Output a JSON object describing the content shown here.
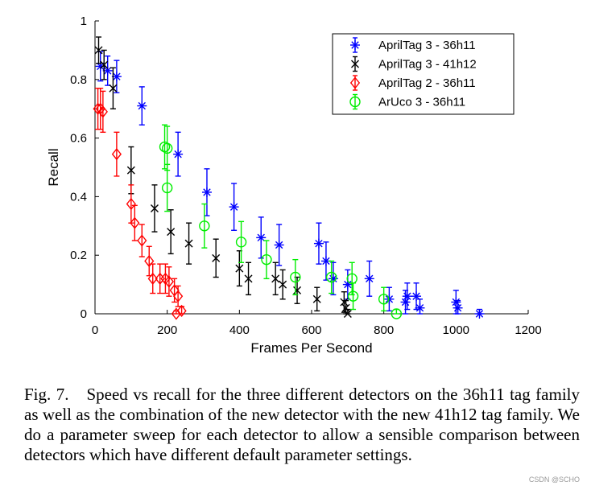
{
  "chart_data": {
    "type": "scatter",
    "xlabel": "Frames Per Second",
    "ylabel": "Recall",
    "xlim": [
      0,
      1200
    ],
    "ylim": [
      0,
      1
    ],
    "xticks": [
      0,
      200,
      400,
      600,
      800,
      1000,
      1200
    ],
    "yticks": [
      0,
      0.2,
      0.4,
      0.6,
      0.8,
      1
    ],
    "ytick_labels": [
      "0",
      "0.2",
      "0.4",
      "0.6",
      "0.8",
      "1"
    ],
    "grid": false,
    "legend_position": "top-right",
    "series": [
      {
        "name": "AprilTag 3 - 36h11",
        "color": "#0000ff",
        "marker": "asterisk",
        "points": [
          {
            "x": 15,
            "y": 0.845,
            "err": 0.05
          },
          {
            "x": 35,
            "y": 0.83,
            "err": 0.05
          },
          {
            "x": 60,
            "y": 0.81,
            "err": 0.055
          },
          {
            "x": 130,
            "y": 0.71,
            "err": 0.065
          },
          {
            "x": 230,
            "y": 0.545,
            "err": 0.075
          },
          {
            "x": 310,
            "y": 0.415,
            "err": 0.08
          },
          {
            "x": 385,
            "y": 0.365,
            "err": 0.08
          },
          {
            "x": 460,
            "y": 0.26,
            "err": 0.07
          },
          {
            "x": 510,
            "y": 0.235,
            "err": 0.07
          },
          {
            "x": 620,
            "y": 0.24,
            "err": 0.07
          },
          {
            "x": 640,
            "y": 0.18,
            "err": 0.065
          },
          {
            "x": 660,
            "y": 0.12,
            "err": 0.055
          },
          {
            "x": 700,
            "y": 0.1,
            "err": 0.05
          },
          {
            "x": 760,
            "y": 0.12,
            "err": 0.06
          },
          {
            "x": 815,
            "y": 0.05,
            "err": 0.04
          },
          {
            "x": 860,
            "y": 0.04,
            "err": 0.04
          },
          {
            "x": 865,
            "y": 0.06,
            "err": 0.045
          },
          {
            "x": 890,
            "y": 0.06,
            "err": 0.045
          },
          {
            "x": 900,
            "y": 0.02,
            "err": 0.03
          },
          {
            "x": 1000,
            "y": 0.04,
            "err": 0.04
          },
          {
            "x": 1005,
            "y": 0.02,
            "err": 0.025
          },
          {
            "x": 1065,
            "y": 0.0,
            "err": 0.015
          }
        ]
      },
      {
        "name": "AprilTag 3 - 41h12",
        "color": "#000000",
        "marker": "x",
        "points": [
          {
            "x": 10,
            "y": 0.9,
            "err": 0.045
          },
          {
            "x": 25,
            "y": 0.85,
            "err": 0.05
          },
          {
            "x": 50,
            "y": 0.77,
            "err": 0.07
          },
          {
            "x": 100,
            "y": 0.49,
            "err": 0.08
          },
          {
            "x": 165,
            "y": 0.36,
            "err": 0.08
          },
          {
            "x": 210,
            "y": 0.28,
            "err": 0.075
          },
          {
            "x": 260,
            "y": 0.24,
            "err": 0.07
          },
          {
            "x": 335,
            "y": 0.19,
            "err": 0.065
          },
          {
            "x": 400,
            "y": 0.155,
            "err": 0.06
          },
          {
            "x": 425,
            "y": 0.12,
            "err": 0.055
          },
          {
            "x": 500,
            "y": 0.12,
            "err": 0.055
          },
          {
            "x": 520,
            "y": 0.1,
            "err": 0.05
          },
          {
            "x": 560,
            "y": 0.08,
            "err": 0.045
          },
          {
            "x": 615,
            "y": 0.05,
            "err": 0.04
          },
          {
            "x": 690,
            "y": 0.04,
            "err": 0.035
          },
          {
            "x": 695,
            "y": 0.02,
            "err": 0.025
          },
          {
            "x": 700,
            "y": 0.0,
            "err": 0.015
          }
        ]
      },
      {
        "name": "AprilTag 2 - 36h11",
        "color": "#ff0000",
        "marker": "diamond",
        "points": [
          {
            "x": 8,
            "y": 0.7,
            "err": 0.07
          },
          {
            "x": 15,
            "y": 0.7,
            "err": 0.07
          },
          {
            "x": 22,
            "y": 0.69,
            "err": 0.07
          },
          {
            "x": 60,
            "y": 0.545,
            "err": 0.075
          },
          {
            "x": 100,
            "y": 0.375,
            "err": 0.065
          },
          {
            "x": 110,
            "y": 0.31,
            "err": 0.06
          },
          {
            "x": 130,
            "y": 0.25,
            "err": 0.055
          },
          {
            "x": 150,
            "y": 0.18,
            "err": 0.05
          },
          {
            "x": 160,
            "y": 0.12,
            "err": 0.05
          },
          {
            "x": 180,
            "y": 0.12,
            "err": 0.05
          },
          {
            "x": 195,
            "y": 0.12,
            "err": 0.05
          },
          {
            "x": 205,
            "y": 0.11,
            "err": 0.05
          },
          {
            "x": 220,
            "y": 0.08,
            "err": 0.04
          },
          {
            "x": 230,
            "y": 0.06,
            "err": 0.035
          },
          {
            "x": 240,
            "y": 0.01,
            "err": 0.015
          },
          {
            "x": 225,
            "y": 0.0,
            "err": 0.01
          }
        ]
      },
      {
        "name": "ArUco 3 - 36h11",
        "color": "#00ee00",
        "marker": "circle",
        "points": [
          {
            "x": 193,
            "y": 0.57,
            "err": 0.075
          },
          {
            "x": 200,
            "y": 0.565,
            "err": 0.075
          },
          {
            "x": 200,
            "y": 0.43,
            "err": 0.08
          },
          {
            "x": 303,
            "y": 0.3,
            "err": 0.075
          },
          {
            "x": 405,
            "y": 0.245,
            "err": 0.07
          },
          {
            "x": 475,
            "y": 0.185,
            "err": 0.065
          },
          {
            "x": 555,
            "y": 0.125,
            "err": 0.06
          },
          {
            "x": 655,
            "y": 0.125,
            "err": 0.055
          },
          {
            "x": 712,
            "y": 0.12,
            "err": 0.055
          },
          {
            "x": 715,
            "y": 0.06,
            "err": 0.045
          },
          {
            "x": 800,
            "y": 0.05,
            "err": 0.04
          },
          {
            "x": 835,
            "y": 0.0,
            "err": 0.015
          }
        ]
      }
    ]
  },
  "caption": {
    "label": "Fig. 7.",
    "text": "Speed vs recall for the three different detectors on the 36h11 tag family as well as the combination of the new detector with the new 41h12 tag family. We do a parameter sweep for each detector to allow a sensible comparison between detectors which have different default parameter settings."
  },
  "watermark": "CSDN @SCHO"
}
